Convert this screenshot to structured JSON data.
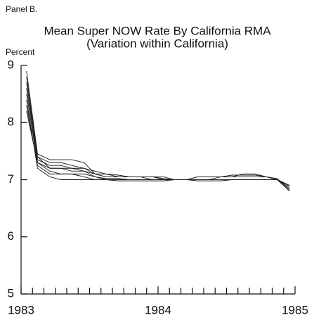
{
  "chart_data": {
    "type": "line",
    "panel_label": "Panel B.",
    "title": "Mean Super NOW Rate By California RMA",
    "subtitle": "(Variation within California)",
    "ylabel": "Percent",
    "x": [
      1983.04,
      1983.12,
      1983.21,
      1983.29,
      1983.37,
      1983.46,
      1983.54,
      1983.62,
      1983.71,
      1983.79,
      1983.87,
      1983.96,
      1984.04,
      1984.12,
      1984.21,
      1984.29,
      1984.37,
      1984.46,
      1984.54,
      1984.62,
      1984.71,
      1984.79,
      1984.87,
      1984.96
    ],
    "series": [
      {
        "color": "#1a1a1a",
        "values": [
          8.9,
          7.45,
          7.35,
          7.35,
          7.35,
          7.3,
          7.1,
          7.05,
          7.05,
          7.05,
          7.05,
          7.05,
          7.05,
          7.0,
          7.0,
          7.0,
          7.0,
          7.05,
          7.05,
          7.05,
          7.05,
          7.05,
          7.0,
          6.9
        ]
      },
      {
        "color": "#1a1a1a",
        "values": [
          8.8,
          7.4,
          7.3,
          7.3,
          7.25,
          7.2,
          7.15,
          7.1,
          7.05,
          7.05,
          7.05,
          7.0,
          7.0,
          7.0,
          7.0,
          7.05,
          7.05,
          7.05,
          7.05,
          7.1,
          7.1,
          7.05,
          7.0,
          6.85
        ]
      },
      {
        "color": "#1a1a1a",
        "values": [
          8.6,
          7.35,
          7.25,
          7.25,
          7.2,
          7.2,
          7.1,
          7.05,
          7.05,
          7.05,
          7.05,
          7.05,
          7.0,
          7.0,
          7.0,
          7.0,
          7.0,
          7.0,
          7.0,
          7.0,
          7.0,
          7.0,
          7.0,
          6.8
        ]
      },
      {
        "color": "#1a1a1a",
        "values": [
          8.5,
          7.3,
          7.2,
          7.2,
          7.15,
          7.15,
          7.05,
          7.0,
          7.0,
          7.0,
          7.0,
          7.0,
          7.0,
          7.0,
          7.0,
          7.0,
          7.0,
          7.0,
          7.0,
          7.0,
          7.0,
          7.0,
          7.0,
          6.85
        ]
      },
      {
        "color": "#1a1a1a",
        "values": [
          8.3,
          7.25,
          7.1,
          7.1,
          7.1,
          7.05,
          7.0,
          7.0,
          6.98,
          6.98,
          6.98,
          6.98,
          6.98,
          7.0,
          7.0,
          7.0,
          7.0,
          7.0,
          7.0,
          7.0,
          7.0,
          7.0,
          7.0,
          6.9
        ]
      },
      {
        "color": "#1a1a1a",
        "values": [
          8.4,
          7.2,
          7.05,
          7.0,
          7.0,
          7.0,
          7.0,
          7.0,
          7.0,
          7.0,
          7.0,
          7.0,
          7.0,
          7.0,
          7.0,
          6.98,
          6.98,
          6.98,
          7.0,
          7.0,
          7.0,
          7.0,
          7.0,
          6.88
        ]
      },
      {
        "color": "#1a1a1a",
        "values": [
          8.7,
          7.4,
          7.2,
          7.2,
          7.2,
          7.15,
          7.1,
          7.1,
          7.08,
          7.05,
          7.05,
          7.05,
          7.02,
          7.0,
          7.0,
          7.05,
          7.05,
          7.05,
          7.08,
          7.08,
          7.08,
          7.05,
          7.02,
          6.82
        ]
      },
      {
        "color": "#1a1a1a",
        "values": [
          8.2,
          7.3,
          7.15,
          7.1,
          7.1,
          7.1,
          7.05,
          7.02,
          7.02,
          7.0,
          7.0,
          7.0,
          7.0,
          7.0,
          7.0,
          7.0,
          7.0,
          7.0,
          7.0,
          7.0,
          7.0,
          7.0,
          7.0,
          6.9
        ]
      }
    ],
    "xlim": [
      1983,
      1985
    ],
    "xticks": [
      1983,
      1984,
      1985
    ],
    "minor_ticks_per_year": 12,
    "ylim": [
      5,
      9
    ],
    "yticks": [
      5,
      6,
      7,
      8,
      9
    ],
    "grid": false
  }
}
